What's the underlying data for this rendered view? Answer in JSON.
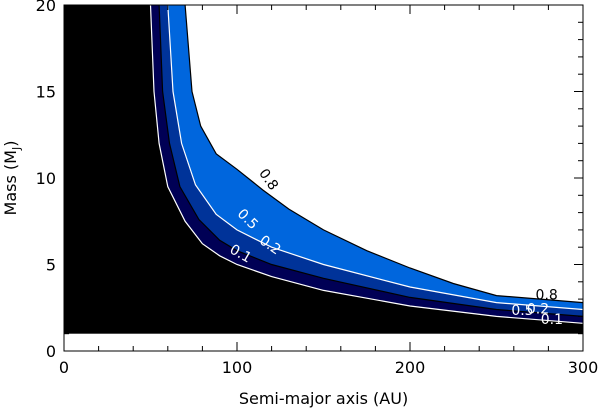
{
  "chart_data": {
    "type": "contour",
    "xlabel": "Semi-major axis (AU)",
    "ylabel": {
      "base": "Mass (M",
      "sub": "J",
      "close": ")"
    },
    "xlim": [
      0,
      300
    ],
    "ylim": [
      0,
      20
    ],
    "xticks": [
      0,
      100,
      200,
      300
    ],
    "yticks": [
      0,
      5,
      10,
      15,
      20
    ],
    "excluded_mass_floor": 1,
    "excluded_color": "#000000",
    "levels": [
      {
        "value": 0.1,
        "label": "0.1",
        "fill": "#000055",
        "line": "#ffffff",
        "points": [
          [
            50,
            20
          ],
          [
            52,
            15
          ],
          [
            55,
            12
          ],
          [
            60,
            9.5
          ],
          [
            70,
            7.5
          ],
          [
            80,
            6.2
          ],
          [
            90,
            5.5
          ],
          [
            100,
            5.0
          ],
          [
            120,
            4.3
          ],
          [
            150,
            3.5
          ],
          [
            200,
            2.6
          ],
          [
            250,
            2.0
          ],
          [
            300,
            1.6
          ]
        ]
      },
      {
        "value": 0.2,
        "label": "0.2",
        "fill": "#003399",
        "line": "#000000",
        "points": [
          [
            55,
            20
          ],
          [
            57,
            15
          ],
          [
            61,
            12
          ],
          [
            67,
            9.5
          ],
          [
            78,
            7.6
          ],
          [
            90,
            6.4
          ],
          [
            100,
            5.8
          ],
          [
            120,
            5.0
          ],
          [
            150,
            4.2
          ],
          [
            200,
            3.1
          ],
          [
            250,
            2.4
          ],
          [
            300,
            2.0
          ]
        ]
      },
      {
        "value": 0.5,
        "label": "0.5",
        "fill": "#0066dd",
        "line": "#ffffff",
        "points": [
          [
            60,
            20
          ],
          [
            63,
            15
          ],
          [
            68,
            12
          ],
          [
            76,
            9.6
          ],
          [
            88,
            7.9
          ],
          [
            100,
            7.0
          ],
          [
            120,
            6.0
          ],
          [
            150,
            5.0
          ],
          [
            200,
            3.7
          ],
          [
            250,
            2.8
          ],
          [
            300,
            2.4
          ]
        ]
      },
      {
        "value": 0.8,
        "label": "0.8",
        "fill": "#0099ff",
        "line": "#000000",
        "points": [
          [
            70,
            20
          ],
          [
            74,
            15
          ],
          [
            79,
            13
          ],
          [
            88,
            11.4
          ],
          [
            100,
            10.5
          ],
          [
            115,
            9.3
          ],
          [
            130,
            8.2
          ],
          [
            150,
            7.0
          ],
          [
            175,
            5.8
          ],
          [
            200,
            4.8
          ],
          [
            225,
            3.9
          ],
          [
            250,
            3.2
          ],
          [
            300,
            2.8
          ]
        ]
      }
    ],
    "contour_labels": [
      {
        "text": "0.8",
        "x": 118,
        "y": 9.9,
        "color": "#000000",
        "angle": 55
      },
      {
        "text": "0.5",
        "x": 106,
        "y": 7.6,
        "color": "#ffffff",
        "angle": 45
      },
      {
        "text": "0.2",
        "x": 119,
        "y": 6.1,
        "color": "#ffffff",
        "angle": 35
      },
      {
        "text": "0.1",
        "x": 102,
        "y": 5.6,
        "color": "#ffffff",
        "angle": 30
      },
      {
        "text": "0.8",
        "x": 279,
        "y": 3.2,
        "color": "#000000",
        "angle": 0
      },
      {
        "text": "0.5",
        "x": 265,
        "y": 2.3,
        "color": "#ffffff",
        "angle": 0
      },
      {
        "text": "0.2",
        "x": 274,
        "y": 2.4,
        "color": "#ffffff",
        "angle": 0
      },
      {
        "text": "0.1",
        "x": 282,
        "y": 1.8,
        "color": "#ffffff",
        "angle": 0
      }
    ]
  }
}
